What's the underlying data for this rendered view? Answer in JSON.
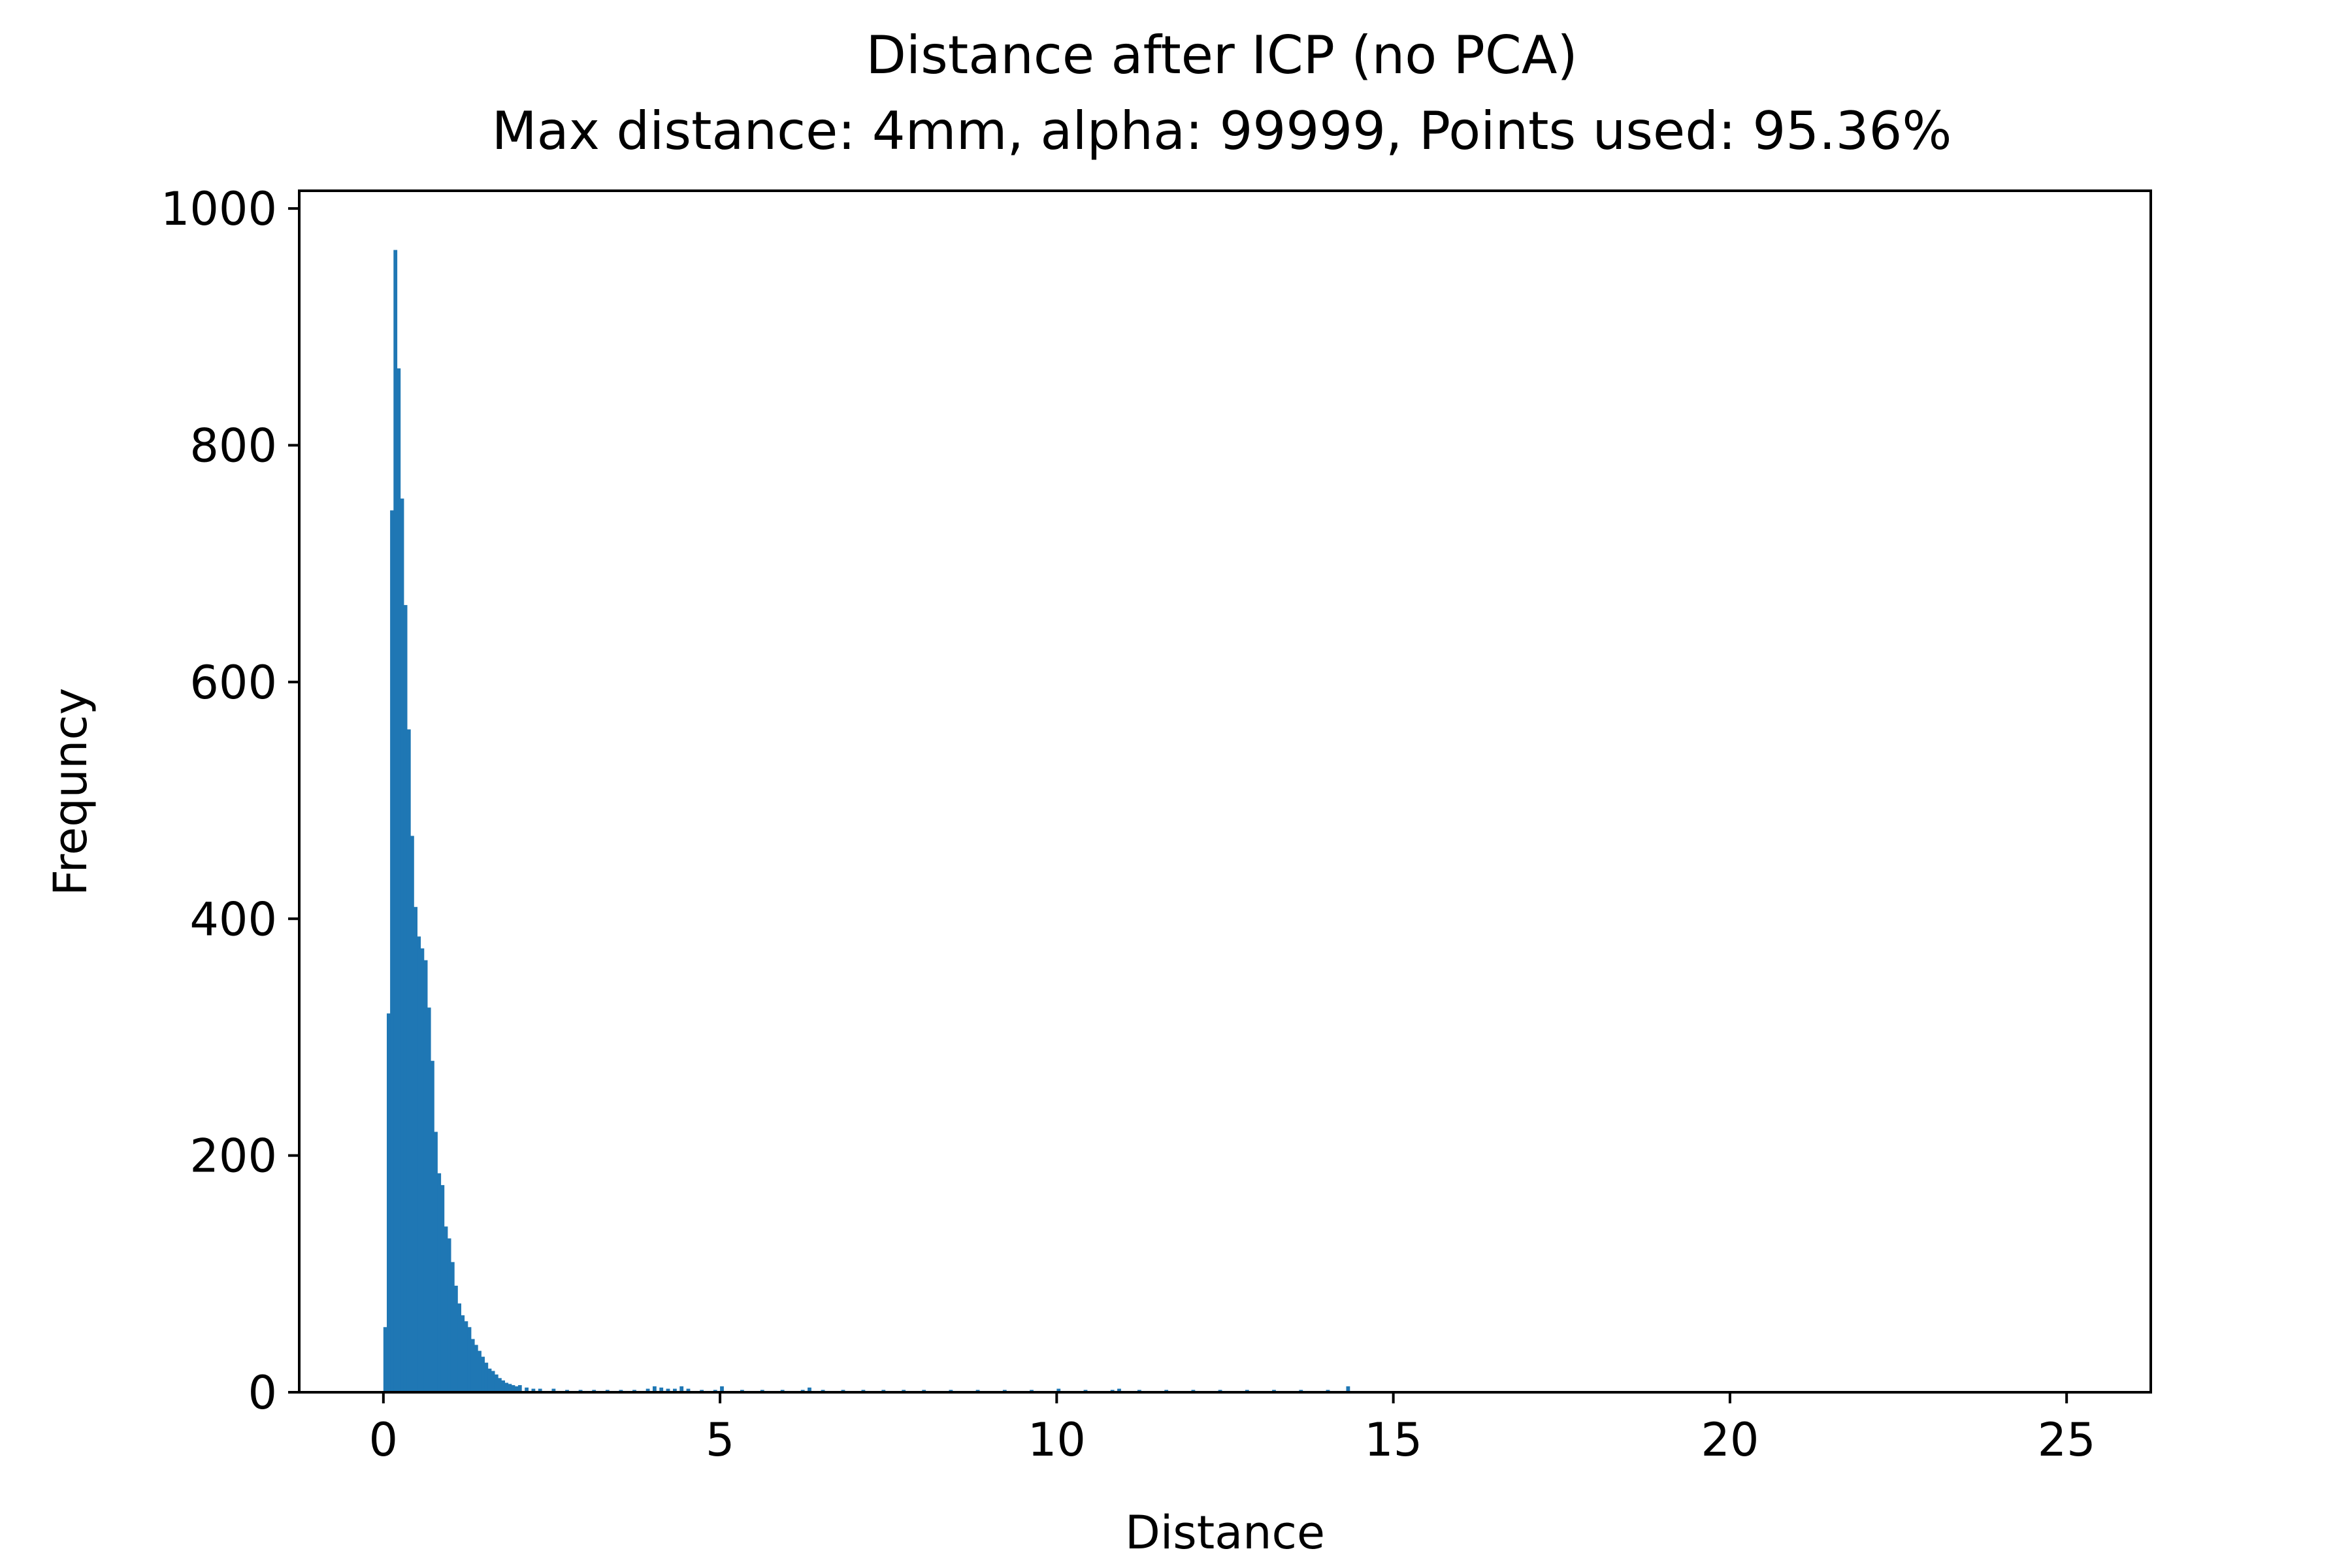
{
  "chart_data": {
    "type": "bar",
    "title": "Distance after ICP (no PCA)",
    "subtitle": "Max distance: 4mm, alpha: 99999, Points used: 95.36%",
    "xlabel": "Distance",
    "ylabel": "Frequncy",
    "xlim": [
      -1.25,
      26.25
    ],
    "ylim": [
      0,
      1015
    ],
    "x_ticks": [
      0,
      5,
      10,
      15,
      20,
      25
    ],
    "y_ticks": [
      0,
      200,
      400,
      600,
      800,
      1000
    ],
    "grid": false,
    "legend": "none",
    "bar_color": "#1f77b4",
    "bins": {
      "x": [
        0.0,
        0.05,
        0.1,
        0.15,
        0.2,
        0.25,
        0.3,
        0.35,
        0.4,
        0.45,
        0.5,
        0.55,
        0.6,
        0.65,
        0.7,
        0.75,
        0.8,
        0.85,
        0.9,
        0.95,
        1.0,
        1.05,
        1.1,
        1.15,
        1.2,
        1.25,
        1.3,
        1.35,
        1.4,
        1.45,
        1.5,
        1.55,
        1.6,
        1.65,
        1.7,
        1.75,
        1.8,
        1.85,
        1.9,
        1.95,
        2.0,
        2.1,
        2.2,
        2.3,
        2.5,
        2.7,
        2.9,
        3.1,
        3.3,
        3.5,
        3.7,
        3.9,
        4.0,
        4.1,
        4.2,
        4.3,
        4.4,
        4.5,
        4.7,
        4.9,
        5.0,
        5.3,
        5.6,
        5.9,
        6.2,
        6.3,
        6.5,
        6.8,
        7.1,
        7.4,
        7.7,
        8.0,
        8.4,
        8.8,
        9.2,
        9.6,
        10.0,
        10.4,
        10.8,
        10.9,
        11.2,
        11.6,
        12.0,
        12.4,
        12.8,
        13.2,
        13.6,
        14.0,
        14.3
      ],
      "width": 0.05,
      "counts": [
        55,
        320,
        745,
        965,
        865,
        755,
        665,
        560,
        470,
        410,
        385,
        375,
        365,
        325,
        280,
        220,
        185,
        175,
        140,
        130,
        110,
        90,
        75,
        65,
        60,
        55,
        45,
        40,
        35,
        30,
        25,
        20,
        18,
        15,
        12,
        10,
        8,
        7,
        6,
        5,
        6,
        4,
        3,
        3,
        3,
        2,
        2,
        2,
        2,
        2,
        2,
        3,
        5,
        4,
        3,
        3,
        5,
        3,
        2,
        2,
        5,
        2,
        2,
        2,
        2,
        4,
        2,
        2,
        2,
        2,
        2,
        2,
        2,
        2,
        2,
        2,
        3,
        2,
        2,
        3,
        2,
        2,
        2,
        2,
        2,
        2,
        2,
        2,
        5
      ]
    }
  }
}
